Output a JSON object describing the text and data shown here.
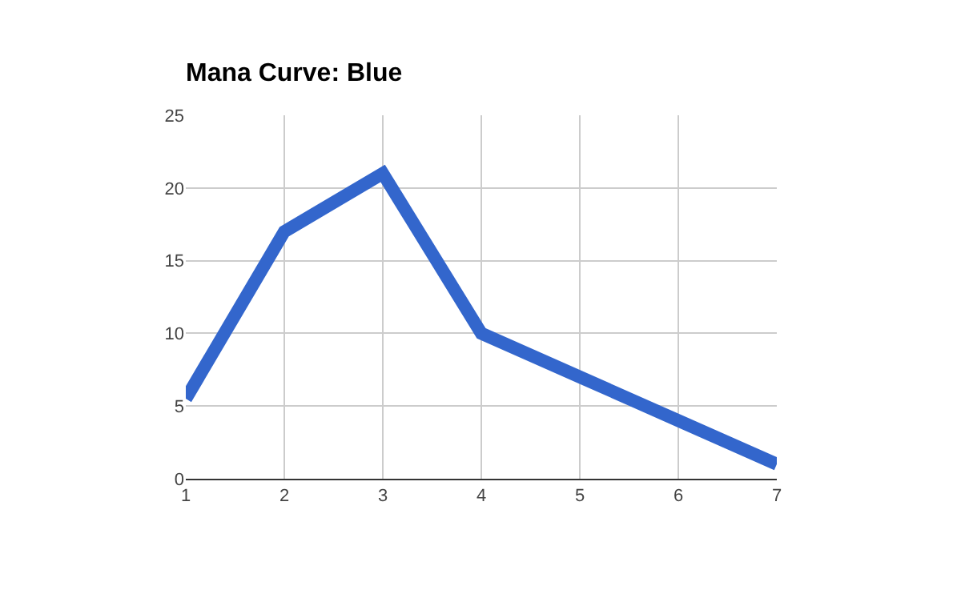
{
  "chart_data": {
    "type": "line",
    "title": "Mana Curve: Blue",
    "x": [
      1,
      2,
      3,
      4,
      5,
      6,
      7
    ],
    "series": [
      {
        "color": "#3366cc",
        "values": [
          5.5,
          17,
          21,
          10,
          7,
          4,
          1
        ]
      }
    ],
    "xlim": [
      1,
      7
    ],
    "xticks": [
      1,
      2,
      3,
      4,
      5,
      6,
      7
    ],
    "ylim": [
      0,
      25
    ],
    "yticks": [
      0,
      5,
      10,
      15,
      20,
      25
    ],
    "grid": true,
    "marker": "none",
    "line_style": "solid"
  }
}
